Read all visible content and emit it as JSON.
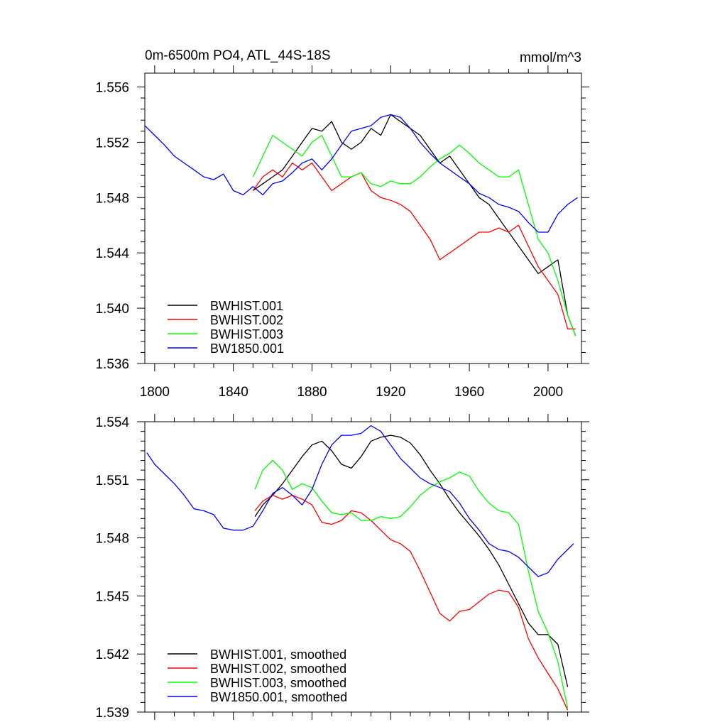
{
  "chart_data": [
    {
      "type": "line",
      "title": "0m-6500m PO4, ATL_44S-18S",
      "units": "mmol/m^3",
      "xlim": [
        1795,
        2017
      ],
      "ylim": [
        1.536,
        1.557
      ],
      "x_ticks": [
        1800,
        1840,
        1880,
        1920,
        1960,
        2000
      ],
      "x_tick_labels": [
        "1800",
        "1840",
        "1880",
        "1920",
        "1960",
        "2000"
      ],
      "y_ticks": [
        1.536,
        1.54,
        1.544,
        1.548,
        1.552,
        1.556
      ],
      "y_tick_labels": [
        "1.536",
        "1.540",
        "1.544",
        "1.548",
        "1.552",
        "1.556"
      ],
      "legend_position": "bottom-left",
      "series": [
        {
          "name": "BWHIST.001",
          "color": "#000000",
          "x": [
            1850,
            1855,
            1860,
            1865,
            1870,
            1875,
            1880,
            1885,
            1890,
            1895,
            1900,
            1905,
            1910,
            1915,
            1920,
            1925,
            1930,
            1935,
            1940,
            1945,
            1950,
            1955,
            1960,
            1965,
            1970,
            1975,
            1980,
            1985,
            1990,
            1995,
            2000,
            2005,
            2010,
            2014
          ],
          "y": [
            1.5485,
            1.549,
            1.5495,
            1.55,
            1.551,
            1.552,
            1.553,
            1.5528,
            1.5535,
            1.552,
            1.5515,
            1.552,
            1.553,
            1.5525,
            1.554,
            1.5535,
            1.553,
            1.5525,
            1.5515,
            1.5505,
            1.551,
            1.55,
            1.549,
            1.548,
            1.5475,
            1.5465,
            1.5455,
            1.5445,
            1.5435,
            1.5425,
            1.543,
            1.5435,
            1.5395,
            1.538
          ]
        },
        {
          "name": "BWHIST.002",
          "color": "#ff0000",
          "x": [
            1850,
            1855,
            1860,
            1865,
            1870,
            1875,
            1880,
            1885,
            1890,
            1895,
            1900,
            1905,
            1910,
            1915,
            1920,
            1925,
            1930,
            1935,
            1940,
            1945,
            1950,
            1955,
            1960,
            1965,
            1970,
            1975,
            1980,
            1985,
            1990,
            1995,
            2000,
            2005,
            2010,
            2014
          ],
          "y": [
            1.5485,
            1.5495,
            1.55,
            1.5495,
            1.5505,
            1.55,
            1.5505,
            1.5495,
            1.5485,
            1.549,
            1.5495,
            1.5498,
            1.5485,
            1.548,
            1.5478,
            1.5475,
            1.547,
            1.546,
            1.545,
            1.5435,
            1.544,
            1.5445,
            1.545,
            1.5455,
            1.5455,
            1.5458,
            1.5455,
            1.546,
            1.5445,
            1.543,
            1.542,
            1.541,
            1.5385,
            1.5385
          ]
        },
        {
          "name": "BWHIST.003",
          "color": "#00ff00",
          "x": [
            1850,
            1855,
            1860,
            1865,
            1870,
            1875,
            1880,
            1885,
            1890,
            1895,
            1900,
            1905,
            1910,
            1915,
            1920,
            1925,
            1930,
            1935,
            1940,
            1945,
            1950,
            1955,
            1960,
            1965,
            1970,
            1975,
            1980,
            1985,
            1990,
            1995,
            2000,
            2005,
            2010,
            2014
          ],
          "y": [
            1.5495,
            1.551,
            1.5525,
            1.552,
            1.5515,
            1.551,
            1.552,
            1.5525,
            1.551,
            1.5495,
            1.5495,
            1.5498,
            1.549,
            1.5488,
            1.5492,
            1.549,
            1.549,
            1.5495,
            1.5502,
            1.5508,
            1.5512,
            1.5518,
            1.5512,
            1.5505,
            1.55,
            1.5495,
            1.5495,
            1.55,
            1.5475,
            1.545,
            1.544,
            1.542,
            1.5395,
            1.538
          ]
        },
        {
          "name": "BW1850.001",
          "color": "#0000ff",
          "x": [
            1795,
            1800,
            1805,
            1810,
            1815,
            1820,
            1825,
            1830,
            1835,
            1840,
            1845,
            1850,
            1855,
            1860,
            1865,
            1870,
            1875,
            1880,
            1885,
            1890,
            1895,
            1900,
            1905,
            1910,
            1915,
            1920,
            1925,
            1930,
            1935,
            1940,
            1945,
            1950,
            1955,
            1960,
            1965,
            1970,
            1975,
            1980,
            1985,
            1990,
            1995,
            2000,
            2005,
            2010,
            2015
          ],
          "y": [
            1.5532,
            1.5525,
            1.5518,
            1.551,
            1.5505,
            1.55,
            1.5495,
            1.5493,
            1.5497,
            1.5485,
            1.5482,
            1.5488,
            1.5482,
            1.549,
            1.5492,
            1.5498,
            1.5505,
            1.5508,
            1.55,
            1.5508,
            1.5518,
            1.5528,
            1.553,
            1.5532,
            1.5538,
            1.554,
            1.5538,
            1.553,
            1.552,
            1.5512,
            1.5505,
            1.55,
            1.5495,
            1.549,
            1.5483,
            1.548,
            1.5475,
            1.5473,
            1.547,
            1.5462,
            1.5455,
            1.5455,
            1.5468,
            1.5475,
            1.548
          ]
        }
      ]
    },
    {
      "type": "line",
      "title": "",
      "xlim": [
        1795,
        2017
      ],
      "ylim": [
        1.539,
        1.554
      ],
      "x_ticks": [
        1800,
        1840,
        1880,
        1920,
        1960,
        2000
      ],
      "y_ticks": [
        1.539,
        1.542,
        1.545,
        1.548,
        1.551,
        1.554
      ],
      "y_tick_labels": [
        "1.539",
        "1.542",
        "1.545",
        "1.548",
        "1.551",
        "1.554"
      ],
      "legend_position": "bottom-left",
      "series": [
        {
          "name": "BWHIST.001, smoothed",
          "color": "#000000",
          "x": [
            1851,
            1855,
            1860,
            1865,
            1870,
            1875,
            1880,
            1885,
            1890,
            1895,
            1900,
            1905,
            1910,
            1915,
            1920,
            1925,
            1930,
            1935,
            1940,
            1945,
            1950,
            1955,
            1960,
            1965,
            1970,
            1975,
            1980,
            1985,
            1990,
            1995,
            2000,
            2005,
            2010
          ],
          "y": [
            1.5491,
            1.5497,
            1.5502,
            1.5508,
            1.5515,
            1.5522,
            1.5528,
            1.553,
            1.5525,
            1.5518,
            1.5516,
            1.5522,
            1.553,
            1.5532,
            1.5533,
            1.5532,
            1.5529,
            1.5523,
            1.5515,
            1.5508,
            1.55,
            1.5493,
            1.5487,
            1.5481,
            1.5474,
            1.5466,
            1.5456,
            1.5446,
            1.5436,
            1.543,
            1.543,
            1.5425,
            1.5403
          ]
        },
        {
          "name": "BWHIST.002, smoothed",
          "color": "#ff0000",
          "x": [
            1851,
            1855,
            1860,
            1865,
            1870,
            1875,
            1880,
            1885,
            1890,
            1895,
            1900,
            1905,
            1910,
            1915,
            1920,
            1925,
            1930,
            1935,
            1940,
            1945,
            1950,
            1955,
            1960,
            1965,
            1970,
            1975,
            1980,
            1985,
            1990,
            1995,
            2000,
            2005,
            2010
          ],
          "y": [
            1.5494,
            1.5499,
            1.5502,
            1.55,
            1.5502,
            1.55,
            1.5497,
            1.5488,
            1.5487,
            1.5489,
            1.5494,
            1.5493,
            1.5489,
            1.5484,
            1.5479,
            1.5477,
            1.5473,
            1.5463,
            1.5452,
            1.5441,
            1.5437,
            1.5442,
            1.5443,
            1.5447,
            1.5451,
            1.5453,
            1.5452,
            1.5444,
            1.5428,
            1.5418,
            1.541,
            1.5402,
            1.5391
          ]
        },
        {
          "name": "BWHIST.003, smoothed",
          "color": "#00ff00",
          "x": [
            1851,
            1855,
            1860,
            1865,
            1870,
            1875,
            1880,
            1885,
            1890,
            1895,
            1900,
            1905,
            1910,
            1915,
            1920,
            1925,
            1930,
            1935,
            1940,
            1945,
            1950,
            1955,
            1960,
            1965,
            1970,
            1975,
            1980,
            1985,
            1990,
            1995,
            2000,
            2005,
            2010
          ],
          "y": [
            1.5505,
            1.5515,
            1.552,
            1.5515,
            1.5505,
            1.5508,
            1.5506,
            1.5499,
            1.5493,
            1.5492,
            1.5493,
            1.5489,
            1.5489,
            1.5491,
            1.549,
            1.5491,
            1.5496,
            1.5502,
            1.5506,
            1.5509,
            1.5511,
            1.5514,
            1.5512,
            1.5504,
            1.5498,
            1.5494,
            1.5493,
            1.5487,
            1.5463,
            1.5442,
            1.5431,
            1.5416,
            1.5392
          ]
        },
        {
          "name": "BW1850.001, smoothed",
          "color": "#0000ff",
          "x": [
            1796,
            1800,
            1805,
            1810,
            1815,
            1820,
            1825,
            1830,
            1835,
            1840,
            1845,
            1850,
            1855,
            1860,
            1865,
            1870,
            1875,
            1880,
            1885,
            1890,
            1895,
            1900,
            1905,
            1910,
            1915,
            1920,
            1925,
            1930,
            1935,
            1940,
            1945,
            1950,
            1955,
            1960,
            1965,
            1970,
            1975,
            1980,
            1985,
            1990,
            1995,
            2000,
            2005,
            2010,
            2013
          ],
          "y": [
            1.5524,
            1.5518,
            1.5513,
            1.5508,
            1.5502,
            1.5495,
            1.5494,
            1.5492,
            1.5485,
            1.5484,
            1.5484,
            1.5486,
            1.5494,
            1.5503,
            1.5506,
            1.5502,
            1.5497,
            1.5505,
            1.5518,
            1.5528,
            1.5533,
            1.5533,
            1.5534,
            1.5538,
            1.5535,
            1.5528,
            1.5521,
            1.5516,
            1.5511,
            1.5508,
            1.5506,
            1.5504,
            1.5498,
            1.549,
            1.5484,
            1.5477,
            1.5474,
            1.5473,
            1.547,
            1.5465,
            1.546,
            1.5462,
            1.5469,
            1.5474,
            1.5477
          ]
        }
      ]
    }
  ]
}
